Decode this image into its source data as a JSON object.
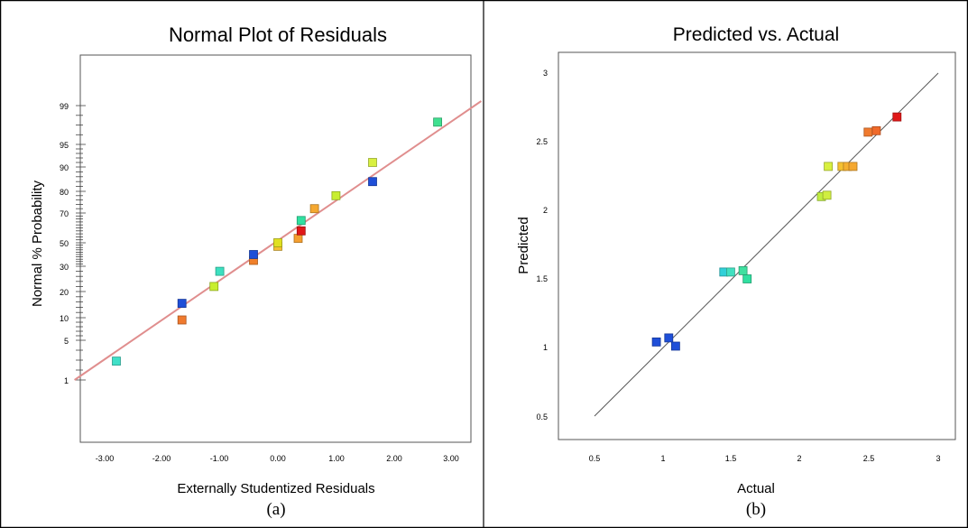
{
  "chart_data": [
    {
      "type": "scatter",
      "title": "Normal Plot of Residuals",
      "xlabel": "Externally Studentized Residuals",
      "ylabel": "Normal % Probability",
      "caption": "(a)",
      "xlim": [
        -3.5,
        3.5
      ],
      "x_ticks": [
        -3,
        -2,
        -1,
        0,
        1,
        2,
        3
      ],
      "x_tick_labels": [
        "-3.00",
        "-2.00",
        "-1.00",
        "0.00",
        "1.00",
        "2.00",
        "3.00"
      ],
      "y_scale": "probability",
      "y_ticks": [
        1,
        5,
        10,
        20,
        30,
        50,
        70,
        80,
        90,
        95,
        99
      ],
      "y_tick_labels": [
        "1",
        "5",
        "10",
        "20",
        "30",
        "50",
        "70",
        "80",
        "90",
        "95",
        "99"
      ],
      "grid": false,
      "reference_line": {
        "color": "#e08e8e",
        "x": [
          -3.5,
          3.5
        ],
        "y": [
          1,
          99.2
        ]
      },
      "points": [
        {
          "x": -2.78,
          "y": 2.9,
          "color": "#40e0c8"
        },
        {
          "x": -1.65,
          "y": 9.5,
          "color": "#f07a2e"
        },
        {
          "x": -1.65,
          "y": 15.5,
          "color": "#1f4fd8"
        },
        {
          "x": -1.1,
          "y": 22,
          "color": "#c8ee2e"
        },
        {
          "x": -1.0,
          "y": 28,
          "color": "#3ce0c0"
        },
        {
          "x": -0.42,
          "y": 35,
          "color": "#f0802a"
        },
        {
          "x": -0.42,
          "y": 40,
          "color": "#1f4fd8"
        },
        {
          "x": 0.0,
          "y": 47,
          "color": "#f5c030"
        },
        {
          "x": 0.0,
          "y": 50,
          "color": "#e0e020"
        },
        {
          "x": 0.35,
          "y": 53,
          "color": "#f5a030"
        },
        {
          "x": 0.4,
          "y": 58,
          "color": "#e01818"
        },
        {
          "x": 0.4,
          "y": 65,
          "color": "#30e0a0"
        },
        {
          "x": 0.63,
          "y": 72,
          "color": "#f5a830"
        },
        {
          "x": 1.0,
          "y": 78,
          "color": "#c8ee30"
        },
        {
          "x": 1.63,
          "y": 84,
          "color": "#1f4fd8"
        },
        {
          "x": 1.63,
          "y": 91,
          "color": "#d8f040"
        },
        {
          "x": 2.75,
          "y": 97.3,
          "color": "#40e090"
        }
      ]
    },
    {
      "type": "scatter",
      "title": "Predicted vs. Actual",
      "xlabel": "Actual",
      "ylabel": "Predicted",
      "caption": "(b)",
      "xlim": [
        0.4,
        3.1
      ],
      "ylim": [
        0.4,
        3.1
      ],
      "x_ticks": [
        0.5,
        1,
        1.5,
        2,
        2.5,
        3
      ],
      "x_tick_labels": [
        "0.5",
        "1",
        "1.5",
        "2",
        "2.5",
        "3"
      ],
      "y_ticks": [
        0.5,
        1,
        1.5,
        2,
        2.5,
        3
      ],
      "y_tick_labels": [
        "0.5",
        "1",
        "1.5",
        "2",
        "2.5",
        "3"
      ],
      "grid": false,
      "reference_line": {
        "color": "#555555",
        "x": [
          0.5,
          3.0
        ],
        "y": [
          0.5,
          3.0
        ]
      },
      "points": [
        {
          "x": 0.95,
          "y": 1.04,
          "color": "#1f4fd8"
        },
        {
          "x": 1.04,
          "y": 1.07,
          "color": "#1f4fd8"
        },
        {
          "x": 1.09,
          "y": 1.01,
          "color": "#1f4fd8"
        },
        {
          "x": 1.44,
          "y": 1.55,
          "color": "#30d0d8"
        },
        {
          "x": 1.49,
          "y": 1.55,
          "color": "#40e0c0"
        },
        {
          "x": 1.58,
          "y": 1.56,
          "color": "#40e0a0"
        },
        {
          "x": 1.61,
          "y": 1.5,
          "color": "#30e0a0"
        },
        {
          "x": 2.15,
          "y": 2.1,
          "color": "#c0ee40"
        },
        {
          "x": 2.19,
          "y": 2.11,
          "color": "#d0ee40"
        },
        {
          "x": 2.2,
          "y": 2.32,
          "color": "#d8f040"
        },
        {
          "x": 2.3,
          "y": 2.32,
          "color": "#f5c030"
        },
        {
          "x": 2.34,
          "y": 2.32,
          "color": "#f5b030"
        },
        {
          "x": 2.38,
          "y": 2.32,
          "color": "#f5a830"
        },
        {
          "x": 2.49,
          "y": 2.57,
          "color": "#f07a2e"
        },
        {
          "x": 2.55,
          "y": 2.58,
          "color": "#f06a2a"
        },
        {
          "x": 2.7,
          "y": 2.68,
          "color": "#e01818"
        }
      ]
    }
  ]
}
